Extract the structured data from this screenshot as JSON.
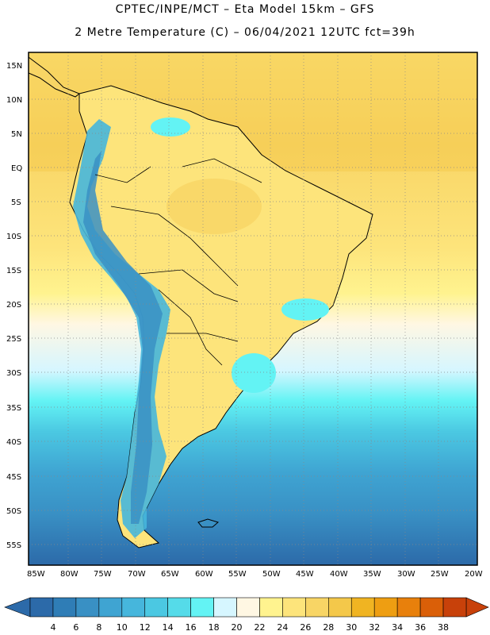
{
  "header": {
    "title_line1": "CPTEC/INPE/MCT –  Eta Model 15km – GFS",
    "title_line2": "2 Metre Temperature (C) – 06/04/2021 12UTC fct=39h"
  },
  "axes": {
    "lat_labels": [
      "15N",
      "10N",
      "5N",
      "EQ",
      "5S",
      "10S",
      "15S",
      "20S",
      "25S",
      "30S",
      "35S",
      "40S",
      "45S",
      "50S",
      "55S"
    ],
    "lon_labels": [
      "85W",
      "80W",
      "75W",
      "70W",
      "65W",
      "60W",
      "55W",
      "50W",
      "45W",
      "40W",
      "35W",
      "30W",
      "25W",
      "20W"
    ]
  },
  "colorbar": {
    "labels": [
      "4",
      "6",
      "8",
      "10",
      "12",
      "14",
      "16",
      "18",
      "20",
      "22",
      "24",
      "26",
      "28",
      "30",
      "32",
      "34",
      "36",
      "38"
    ],
    "colors": [
      "#2c6aa9",
      "#2f7db6",
      "#3990c4",
      "#3fa4d2",
      "#46b6dc",
      "#4bc8e2",
      "#55dbe9",
      "#63f3f4",
      "#d6f6ff",
      "#fff7e3",
      "#fff38f",
      "#fde47b",
      "#f8d565",
      "#f4c84a",
      "#f0b422",
      "#ee9e12",
      "#e8800c",
      "#da5f08",
      "#c8410a"
    ]
  }
}
